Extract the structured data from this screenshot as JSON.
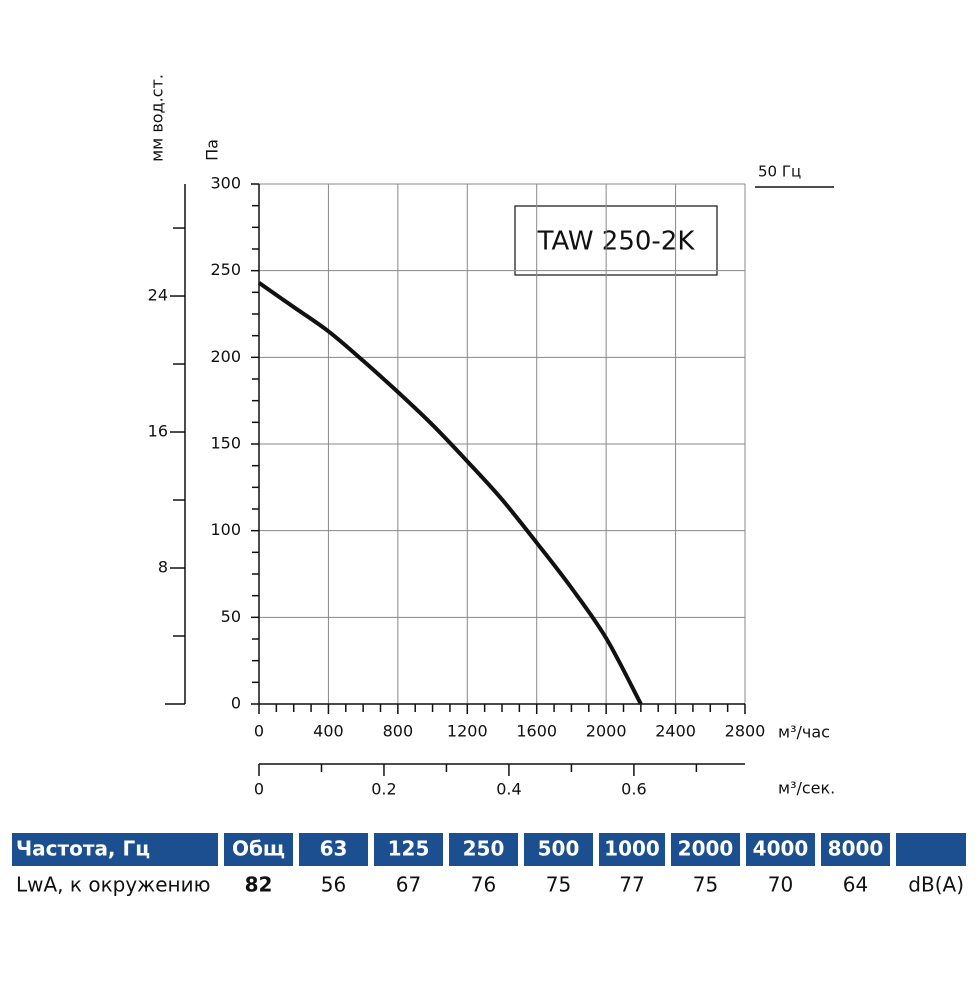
{
  "chart_data": {
    "type": "line",
    "y_label": "Па",
    "y2_label": "мм вод.ст.",
    "x_label": "м³/час",
    "x2_label": "м³/сек.",
    "annotation": "TAW 250-2K",
    "x": [
      0,
      200,
      400,
      600,
      800,
      1000,
      1200,
      1400,
      1600,
      1800,
      2000,
      2200
    ],
    "series": [
      {
        "name": "50 Гц",
        "color": "#111111",
        "values": [
          243,
          229,
          215,
          198,
          180,
          161,
          140,
          118,
          93,
          67,
          38,
          0
        ]
      }
    ],
    "xlim": [
      0,
      2800
    ],
    "xticks": [
      0,
      400,
      800,
      1200,
      1600,
      2000,
      2400,
      2800
    ],
    "xminor": [
      100,
      200,
      300,
      500,
      600,
      700,
      900,
      1000,
      1100,
      1300,
      1400,
      1500,
      1700,
      1800,
      1900,
      2100,
      2200,
      2300,
      2500,
      2600,
      2700
    ],
    "ylim": [
      0,
      300
    ],
    "yticks": [
      0,
      50,
      100,
      150,
      200,
      250,
      300
    ],
    "yminor": [
      12.5,
      25,
      37.5,
      62.5,
      75,
      87.5,
      112.5,
      125,
      137.5,
      162.5,
      175,
      187.5,
      212.5,
      225,
      237.5,
      262.5,
      275,
      287.5
    ],
    "y2lim": [
      0,
      30.59
    ],
    "y2ticks": [
      8,
      16,
      24
    ],
    "y2minor": [
      4,
      12,
      20,
      28
    ],
    "x2lim": [
      0,
      0.7778
    ],
    "x2ticks": [
      0,
      0.2,
      0.4,
      0.6
    ],
    "x2minor": [
      0.1,
      0.3,
      0.5,
      0.7
    ],
    "grid": true
  },
  "table": {
    "header": [
      "Частота, Гц",
      "Общ",
      "63",
      "125",
      "250",
      "500",
      "1000",
      "2000",
      "4000",
      "8000",
      ""
    ],
    "rows": [
      [
        "LwA, к окружению",
        82,
        56,
        67,
        76,
        75,
        77,
        75,
        70,
        64,
        "dB(A)"
      ]
    ]
  }
}
